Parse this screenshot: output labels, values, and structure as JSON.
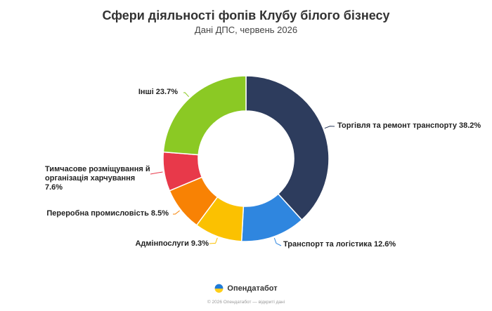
{
  "chart_data": {
    "type": "pie",
    "title": "Сфери діяльності фопів Клубу білого бізнесу",
    "subtitle": "Дані ДПС, червень 2026",
    "slices": [
      {
        "label": "Торгівля та ремонт транспорту 38.2%",
        "value": 38.2,
        "color": "#2d3c5d"
      },
      {
        "label": "Транспорт та логістика 12.6%",
        "value": 12.6,
        "color": "#2f86df"
      },
      {
        "label": "Адмінпослуги 9.3%",
        "value": 9.3,
        "color": "#fbc101"
      },
      {
        "label": "Переробна промисловість 8.5%",
        "value": 8.5,
        "color": "#f88204"
      },
      {
        "label": "Тимчасове розміщування й організація харчування 7.6%",
        "value": 7.6,
        "color": "#e8394a"
      },
      {
        "label": "Інші 23.7%",
        "value": 23.7,
        "color": "#8bc924"
      }
    ]
  },
  "brand": {
    "name": "Опендатабот"
  },
  "footer": {
    "text": "© 2026 Опендатабот — відкриті дані"
  }
}
